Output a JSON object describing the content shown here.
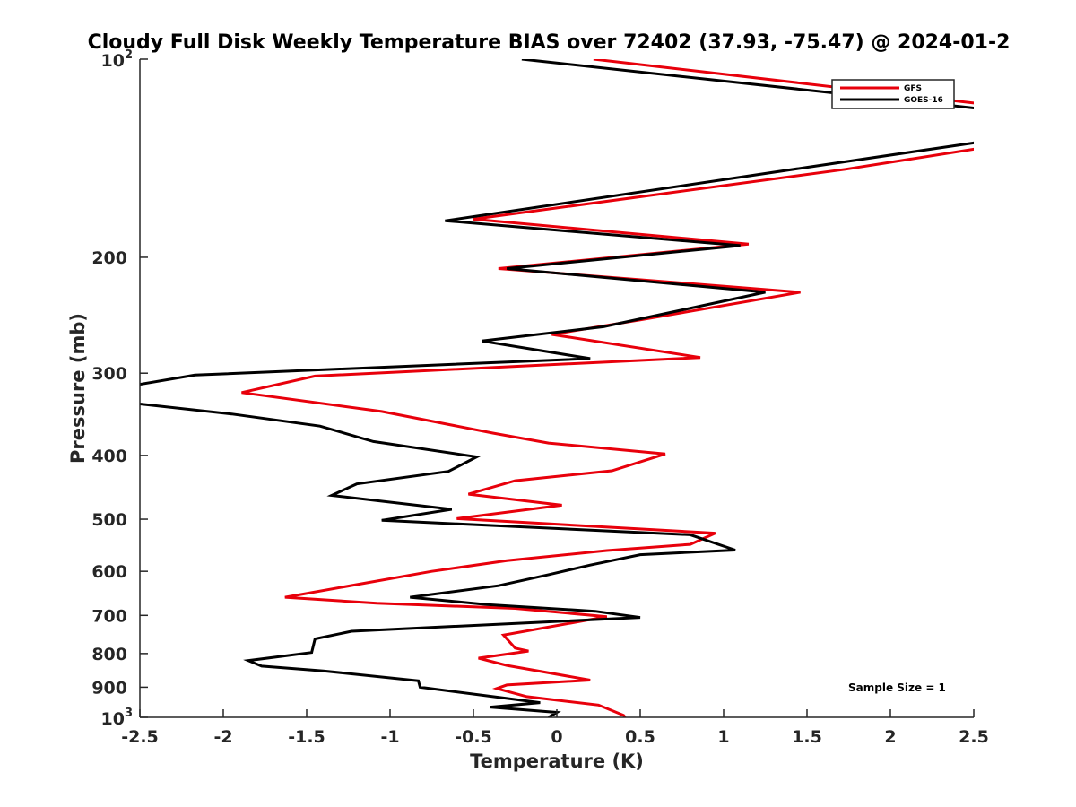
{
  "chart_data": {
    "type": "line",
    "title": "Cloudy Full Disk Weekly Temperature BIAS over 72402 (37.93, -75.47) @ 2024-01-2",
    "xlabel": "Temperature (K)",
    "ylabel": "Pressure (mb)",
    "xlim": [
      -2.5,
      2.5
    ],
    "ylim": [
      100,
      1000
    ],
    "y_scale": "log",
    "y_reversed": true,
    "grid": false,
    "legend_position": "top-right",
    "x_ticks": [
      "-2.5",
      "-2",
      "-1.5",
      "-1",
      "-0.5",
      "0",
      "0.5",
      "1",
      "1.5",
      "2",
      "2.5"
    ],
    "y_ticks": [
      {
        "value": 100,
        "base": "10",
        "exp": "2"
      },
      {
        "value": 200,
        "label": "200"
      },
      {
        "value": 300,
        "label": "300"
      },
      {
        "value": 400,
        "label": "400"
      },
      {
        "value": 500,
        "label": "500"
      },
      {
        "value": 600,
        "label": "600"
      },
      {
        "value": 700,
        "label": "700"
      },
      {
        "value": 800,
        "label": "800"
      },
      {
        "value": 900,
        "label": "900"
      },
      {
        "value": 1000,
        "base": "10",
        "exp": "3"
      }
    ],
    "annotation": "Sample Size = 1",
    "series": [
      {
        "name": "GFS",
        "color": "#e8000b",
        "points": [
          [
            0.22,
            100
          ],
          [
            2.55,
            117
          ],
          [
            2.55,
            135
          ],
          [
            2.5,
            137
          ],
          [
            1.73,
            147
          ],
          [
            -0.5,
            175
          ],
          [
            1.15,
            191
          ],
          [
            -0.35,
            208
          ],
          [
            1.46,
            226
          ],
          [
            0.5,
            249
          ],
          [
            -0.03,
            262
          ],
          [
            0.86,
            284
          ],
          [
            -1.45,
            303
          ],
          [
            -1.89,
            321
          ],
          [
            -1.05,
            343
          ],
          [
            -0.38,
            370
          ],
          [
            -0.05,
            383
          ],
          [
            0.65,
            398
          ],
          [
            0.33,
            422
          ],
          [
            -0.25,
            437
          ],
          [
            -0.53,
            458
          ],
          [
            0.03,
            476
          ],
          [
            -0.6,
            499
          ],
          [
            0.95,
            525
          ],
          [
            0.8,
            546
          ],
          [
            0.3,
            558
          ],
          [
            -0.3,
            578
          ],
          [
            -0.75,
            600
          ],
          [
            -1.63,
            657
          ],
          [
            -1.08,
            671
          ],
          [
            -0.25,
            683
          ],
          [
            0.3,
            703
          ],
          [
            -0.32,
            750
          ],
          [
            -0.25,
            785
          ],
          [
            -0.17,
            793
          ],
          [
            -0.47,
            813
          ],
          [
            -0.3,
            834
          ],
          [
            0.2,
            878
          ],
          [
            -0.3,
            893
          ],
          [
            -0.36,
            904
          ],
          [
            -0.18,
            930
          ],
          [
            0.25,
            958
          ],
          [
            0.4,
            993
          ],
          [
            0.41,
            1000
          ]
        ]
      },
      {
        "name": "GOES-16",
        "color": "#000000",
        "points": [
          [
            -0.21,
            100
          ],
          [
            2.55,
            119
          ],
          [
            2.55,
            132
          ],
          [
            2.5,
            134
          ],
          [
            1.5,
            146
          ],
          [
            -0.67,
            176
          ],
          [
            1.1,
            192
          ],
          [
            -0.3,
            208
          ],
          [
            1.25,
            226
          ],
          [
            0.28,
            255
          ],
          [
            -0.45,
            268
          ],
          [
            0.2,
            285
          ],
          [
            -2.17,
            302
          ],
          [
            -2.6,
            315
          ],
          [
            -2.6,
            332
          ],
          [
            -1.95,
            346
          ],
          [
            -1.42,
            361
          ],
          [
            -1.1,
            381
          ],
          [
            -0.48,
            402
          ],
          [
            -0.65,
            423
          ],
          [
            -1.2,
            442
          ],
          [
            -1.35,
            460
          ],
          [
            -0.63,
            483
          ],
          [
            -1.05,
            502
          ],
          [
            0.8,
            528
          ],
          [
            1.07,
            557
          ],
          [
            0.5,
            566
          ],
          [
            0.2,
            587
          ],
          [
            -0.05,
            607
          ],
          [
            -0.35,
            631
          ],
          [
            -0.88,
            657
          ],
          [
            -0.42,
            674
          ],
          [
            0.23,
            690
          ],
          [
            0.5,
            705
          ],
          [
            -1.23,
            740
          ],
          [
            -1.45,
            760
          ],
          [
            -1.47,
            797
          ],
          [
            -1.85,
            820
          ],
          [
            -1.77,
            836
          ],
          [
            -1.4,
            850
          ],
          [
            -0.83,
            880
          ],
          [
            -0.82,
            900
          ],
          [
            -0.1,
            950
          ],
          [
            -0.4,
            965
          ],
          [
            0.0,
            983
          ],
          [
            -0.05,
            1000
          ]
        ]
      }
    ]
  }
}
